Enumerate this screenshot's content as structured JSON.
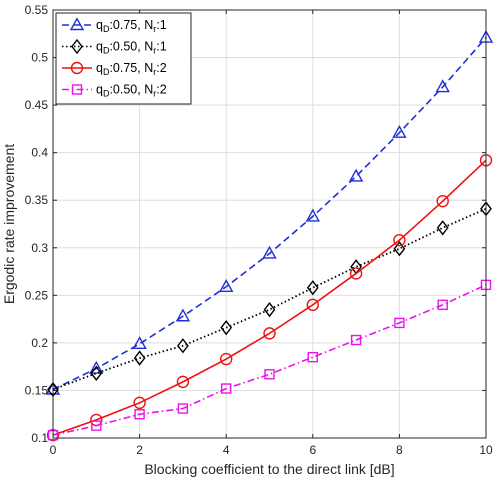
{
  "chart_data": {
    "type": "line",
    "xlabel": "Blocking coefficient to the direct link [dB]",
    "ylabel": "Ergodic rate improvement",
    "xlim": [
      0,
      10
    ],
    "ylim": [
      0.1,
      0.55
    ],
    "xticks": [
      "0",
      "2",
      "4",
      "6",
      "8",
      "10"
    ],
    "yticks": [
      "0.1",
      "0.15",
      "0.2",
      "0.25",
      "0.3",
      "0.35",
      "0.4",
      "0.45",
      "0.5",
      "0.55"
    ],
    "grid": true,
    "legend_position": "top-left",
    "x": [
      0,
      1,
      2,
      3,
      4,
      5,
      6,
      7,
      8,
      9,
      10
    ],
    "series": [
      {
        "name": "q_D:0.75, N_r:1",
        "label_parts": [
          "q",
          "D",
          ":0.75, N",
          "r",
          ":1"
        ],
        "color": "#1f2fd6",
        "dash": "dashed",
        "marker": "triangle",
        "values": [
          0.151,
          0.173,
          0.199,
          0.228,
          0.259,
          0.294,
          0.333,
          0.375,
          0.421,
          0.469,
          0.521
        ]
      },
      {
        "name": "q_D:0.50, N_r:1",
        "label_parts": [
          "q",
          "D",
          ":0.50, N",
          "r",
          ":1"
        ],
        "color": "#000000",
        "dash": "dotted",
        "marker": "diamond",
        "values": [
          0.151,
          0.168,
          0.184,
          0.197,
          0.216,
          0.235,
          0.258,
          0.28,
          0.299,
          0.321,
          0.341
        ]
      },
      {
        "name": "q_D:0.75, N_r:2",
        "label_parts": [
          "q",
          "D",
          ":0.75, N",
          "r",
          ":2"
        ],
        "color": "#ee1111",
        "dash": "solid",
        "marker": "circle",
        "values": [
          0.103,
          0.119,
          0.137,
          0.159,
          0.183,
          0.21,
          0.24,
          0.273,
          0.308,
          0.349,
          0.392
        ]
      },
      {
        "name": "q_D:0.50, N_r:2",
        "label_parts": [
          "q",
          "D",
          ":0.50, N",
          "r",
          ":2"
        ],
        "color": "#ee11ee",
        "dash": "dashdot",
        "marker": "square",
        "values": [
          0.103,
          0.113,
          0.125,
          0.131,
          0.152,
          0.167,
          0.185,
          0.203,
          0.221,
          0.24,
          0.261
        ]
      }
    ]
  }
}
